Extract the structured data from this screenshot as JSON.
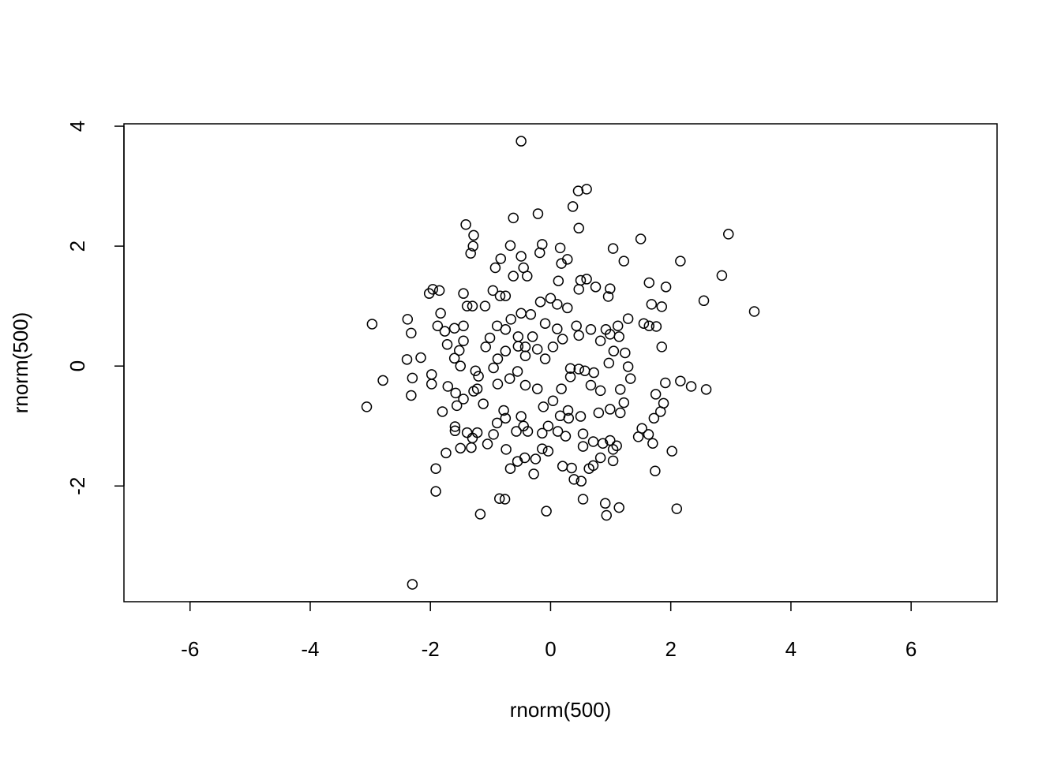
{
  "chart_data": {
    "type": "scatter",
    "xlabel": "rnorm(500)",
    "ylabel": "rnorm(500)",
    "xlim": [
      -7.1,
      7.43
    ],
    "ylim": [
      -3.93,
      4.04
    ],
    "xticks": [
      -6,
      -4,
      -2,
      0,
      2,
      4,
      6
    ],
    "yticks": [
      -2,
      0,
      2,
      4
    ],
    "color": "#000000",
    "x": [
      -0.49,
      0.46,
      0.6,
      0.37,
      0.47,
      -0.62,
      -0.21,
      -1.41,
      -1.28,
      -1.29,
      -1.33,
      1.5,
      2.96,
      1.04,
      2.16,
      1.22,
      2.85,
      2.55,
      3.39,
      -2.97,
      -2.38,
      -2.32,
      -1.96,
      -1.85,
      -2.02,
      -2.16,
      -2.39,
      -2.79,
      -3.06,
      -2.3,
      -2.32,
      -1.98,
      -1.98,
      -1.8,
      -1.91,
      -1.91,
      -2.3,
      -1.17,
      -0.85,
      -0.76,
      -0.07,
      0.93,
      0.91,
      1.14,
      2.1,
      2.02,
      1.74,
      1.46,
      1.63,
      1.7,
      1.52,
      1.72,
      2.34,
      2.59,
      2.16,
      1.83,
      1.88,
      1.75,
      1.91,
      1.85,
      1.64,
      1.76,
      1.55,
      1.68,
      1.85,
      1.92,
      1.64,
      1.29,
      1.12,
      0.92,
      0.96,
      0.99,
      0.75,
      0.6,
      0.5,
      0.47,
      0.13,
      0.18,
      0.16,
      0.28,
      -0.14,
      -0.18,
      -0.67,
      -0.49,
      -0.45,
      -0.83,
      -0.92,
      -0.62,
      -0.39,
      -1.3,
      -1.39,
      -1.09,
      -1.45,
      -0.96,
      -0.84,
      -0.75,
      -1.6,
      -1.45,
      -1.76,
      -1.88,
      -1.83,
      -1.72,
      -1.45,
      -1.52,
      -1.5,
      -1.6,
      -1.71,
      -1.58,
      -1.56,
      -1.45,
      -1.59,
      -1.59,
      -1.5,
      -1.74,
      -1.39,
      -1.22,
      -1.3,
      -1.32,
      -1.05,
      -0.95,
      -0.89,
      -0.74,
      -0.67,
      -0.55,
      -0.43,
      -0.25,
      -0.28,
      -0.14,
      -0.04,
      0.2,
      0.35,
      0.39,
      0.51,
      0.54,
      0.64,
      0.71,
      0.83,
      1.04,
      1.04,
      1.1,
      0.99,
      0.87,
      0.71,
      0.54,
      0.54,
      0.25,
      0.12,
      -0.14,
      -0.38,
      -0.57,
      -0.75,
      -1.12,
      -1.22,
      -1.28,
      -1.25,
      -1.2,
      -0.95,
      -1.08,
      -1.01,
      -0.89,
      -0.75,
      -0.66,
      -0.49,
      -0.33,
      -0.17,
      0.0,
      0.28,
      0.11,
      0.43,
      0.47,
      0.67,
      0.83,
      0.99,
      1.14,
      1.05,
      1.24,
      0.97,
      1.29,
      1.33,
      1.16,
      1.22,
      1.16,
      0.99,
      0.8,
      0.83,
      0.67,
      0.47,
      0.33,
      0.18,
      0.29,
      0.16,
      0.3,
      0.5,
      0.04,
      -0.12,
      -0.22,
      -0.42,
      -0.55,
      -0.42,
      -0.22,
      -0.09,
      0.04,
      0.2,
      0.11,
      -0.09,
      -0.3,
      -0.54,
      -0.75,
      -0.88,
      -0.68,
      -0.88,
      -0.78,
      -0.49,
      -0.45,
      0.33,
      0.57,
      0.72,
      -0.54,
      -0.42,
      -0.04
    ],
    "y": [
      3.75,
      2.92,
      2.95,
      2.66,
      2.3,
      2.47,
      2.54,
      2.36,
      2.18,
      2.0,
      1.88,
      2.12,
      2.2,
      1.96,
      1.75,
      1.75,
      1.51,
      1.09,
      0.91,
      0.7,
      0.78,
      0.55,
      1.28,
      1.26,
      1.21,
      0.14,
      0.11,
      -0.24,
      -0.68,
      -0.2,
      -0.49,
      -0.14,
      -0.3,
      -0.76,
      -1.71,
      -2.09,
      -3.64,
      -2.47,
      -2.21,
      -2.22,
      -2.42,
      -2.49,
      -2.29,
      -2.36,
      -2.38,
      -1.42,
      -1.75,
      -1.18,
      -1.14,
      -1.29,
      -1.04,
      -0.87,
      -0.34,
      -0.39,
      -0.25,
      -0.76,
      -0.62,
      -0.47,
      -0.28,
      0.32,
      0.67,
      0.66,
      0.71,
      1.03,
      0.99,
      1.32,
      1.39,
      0.79,
      0.67,
      0.61,
      1.16,
      1.29,
      1.32,
      1.45,
      1.43,
      1.28,
      1.42,
      1.71,
      1.97,
      1.78,
      2.03,
      1.89,
      2.01,
      1.83,
      1.64,
      1.79,
      1.64,
      1.5,
      1.5,
      1.0,
      1.0,
      1.0,
      1.21,
      1.26,
      1.17,
      1.17,
      0.63,
      0.67,
      0.58,
      0.67,
      0.88,
      0.36,
      0.42,
      0.26,
      0.0,
      0.13,
      -0.34,
      -0.45,
      -0.66,
      -0.55,
      -1.01,
      -1.08,
      -1.37,
      -1.45,
      -1.11,
      -1.11,
      -1.2,
      -1.36,
      -1.3,
      -1.14,
      -0.95,
      -1.39,
      -1.71,
      -1.59,
      -1.53,
      -1.55,
      -1.8,
      -1.38,
      -1.42,
      -1.67,
      -1.7,
      -1.89,
      -1.92,
      -2.22,
      -1.71,
      -1.66,
      -1.53,
      -1.58,
      -1.39,
      -1.33,
      -1.24,
      -1.29,
      -1.26,
      -1.34,
      -1.13,
      -1.17,
      -1.09,
      -1.12,
      -1.09,
      -1.09,
      -0.87,
      -0.63,
      -0.38,
      -0.42,
      -0.08,
      -0.17,
      -0.03,
      0.32,
      0.47,
      0.67,
      0.61,
      0.78,
      0.88,
      0.86,
      1.07,
      1.13,
      0.97,
      1.03,
      0.67,
      0.51,
      0.61,
      0.42,
      0.53,
      0.49,
      0.25,
      0.22,
      0.05,
      -0.01,
      -0.21,
      -0.39,
      -0.61,
      -0.78,
      -0.72,
      -0.78,
      -0.41,
      -0.32,
      -0.05,
      -0.18,
      -0.38,
      -0.74,
      -0.83,
      -0.87,
      -0.84,
      -0.58,
      -0.68,
      -0.38,
      -0.32,
      -0.09,
      0.17,
      0.28,
      0.12,
      0.32,
      0.45,
      0.62,
      0.71,
      0.49,
      0.49,
      0.25,
      0.12,
      -0.21,
      -0.3,
      -0.74,
      -0.84,
      -1.0,
      -0.04,
      -0.08,
      -0.11,
      0.33,
      0.32,
      -1.0
    ]
  }
}
